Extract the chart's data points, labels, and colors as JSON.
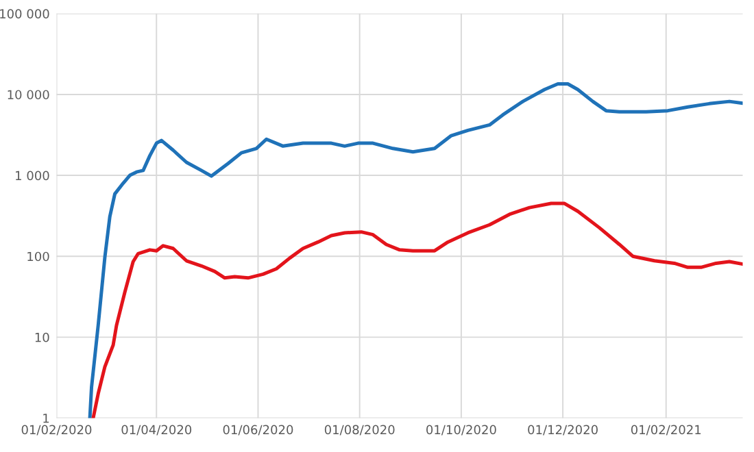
{
  "chart_data": {
    "type": "line",
    "log": "y",
    "grid": true,
    "legend": false,
    "xlim": [
      "2020-02-01",
      "2021-03-19"
    ],
    "xticks": [
      {
        "value": "2020-02-01",
        "label": "01/02/2020"
      },
      {
        "value": "2020-04-01",
        "label": "01/04/2020"
      },
      {
        "value": "2020-06-01",
        "label": "01/06/2020"
      },
      {
        "value": "2020-08-01",
        "label": "01/08/2020"
      },
      {
        "value": "2020-10-01",
        "label": "01/10/2020"
      },
      {
        "value": "2020-12-01",
        "label": "01/12/2020"
      },
      {
        "value": "2021-02-01",
        "label": "01/02/2021"
      }
    ],
    "ylim": [
      1,
      100000
    ],
    "yticks": [
      1,
      10,
      100,
      {
        "value": 1000,
        "label": "1 000"
      },
      {
        "value": 10000,
        "label": "10 000"
      },
      {
        "value": 100000,
        "label": "100 000"
      }
    ],
    "series": [
      {
        "color": "#1f72b8",
        "x": [
          "2020-02-21",
          "2020-02-22",
          "2020-02-26",
          "2020-03-01",
          "2020-03-04",
          "2020-03-07",
          "2020-03-12",
          "2020-03-16",
          "2020-03-20",
          "2020-03-24",
          "2020-03-28",
          "2020-04-01",
          "2020-04-04",
          "2020-04-11",
          "2020-04-19",
          "2020-04-28",
          "2020-05-04",
          "2020-05-14",
          "2020-05-22",
          "2020-05-31",
          "2020-06-06",
          "2020-06-16",
          "2020-06-28",
          "2020-07-15",
          "2020-07-23",
          "2020-07-31",
          "2020-08-09",
          "2020-08-21",
          "2020-09-02",
          "2020-09-15",
          "2020-09-25",
          "2020-10-05",
          "2020-10-18",
          "2020-10-26",
          "2020-11-07",
          "2020-11-20",
          "2020-11-28",
          "2020-12-04",
          "2020-12-10",
          "2020-12-19",
          "2020-12-27",
          "2021-01-04",
          "2021-01-20",
          "2021-02-02",
          "2021-02-14",
          "2021-02-27",
          "2021-03-11",
          "2021-03-19"
        ],
        "values": [
          1,
          2.4,
          14,
          97,
          310,
          590,
          800,
          1000,
          1100,
          1150,
          1750,
          2500,
          2700,
          2050,
          1450,
          1150,
          980,
          1400,
          1900,
          2150,
          2800,
          2300,
          2500,
          2500,
          2300,
          2500,
          2500,
          2150,
          1950,
          2150,
          3100,
          3600,
          4200,
          5600,
          8200,
          11500,
          13500,
          13500,
          11500,
          8200,
          6300,
          6100,
          6100,
          6300,
          7000,
          7700,
          8200,
          7800
        ]
      },
      {
        "color": "#e3141b",
        "x": [
          "2020-02-23",
          "2020-02-26",
          "2020-03-01",
          "2020-03-06",
          "2020-03-08",
          "2020-03-13",
          "2020-03-18",
          "2020-03-21",
          "2020-03-28",
          "2020-04-01",
          "2020-04-05",
          "2020-04-11",
          "2020-04-19",
          "2020-04-28",
          "2020-05-06",
          "2020-05-12",
          "2020-05-18",
          "2020-05-26",
          "2020-06-04",
          "2020-06-12",
          "2020-06-20",
          "2020-06-28",
          "2020-07-07",
          "2020-07-15",
          "2020-07-23",
          "2020-08-02",
          "2020-08-09",
          "2020-08-17",
          "2020-08-25",
          "2020-09-02",
          "2020-09-15",
          "2020-09-23",
          "2020-10-05",
          "2020-10-18",
          "2020-10-30",
          "2020-11-11",
          "2020-11-24",
          "2020-12-02",
          "2020-12-10",
          "2020-12-23",
          "2021-01-04",
          "2021-01-12",
          "2021-01-25",
          "2021-02-06",
          "2021-02-14",
          "2021-02-22",
          "2021-03-03",
          "2021-03-11",
          "2021-03-19"
        ],
        "values": [
          1,
          2,
          4.3,
          8,
          14,
          36,
          86,
          108,
          120,
          117,
          135,
          125,
          88,
          76,
          65,
          54,
          56,
          54,
          60,
          70,
          95,
          125,
          150,
          180,
          195,
          200,
          185,
          140,
          120,
          117,
          117,
          150,
          195,
          245,
          330,
          400,
          450,
          450,
          360,
          225,
          140,
          100,
          88,
          82,
          73,
          73,
          82,
          86,
          80
        ]
      }
    ]
  }
}
